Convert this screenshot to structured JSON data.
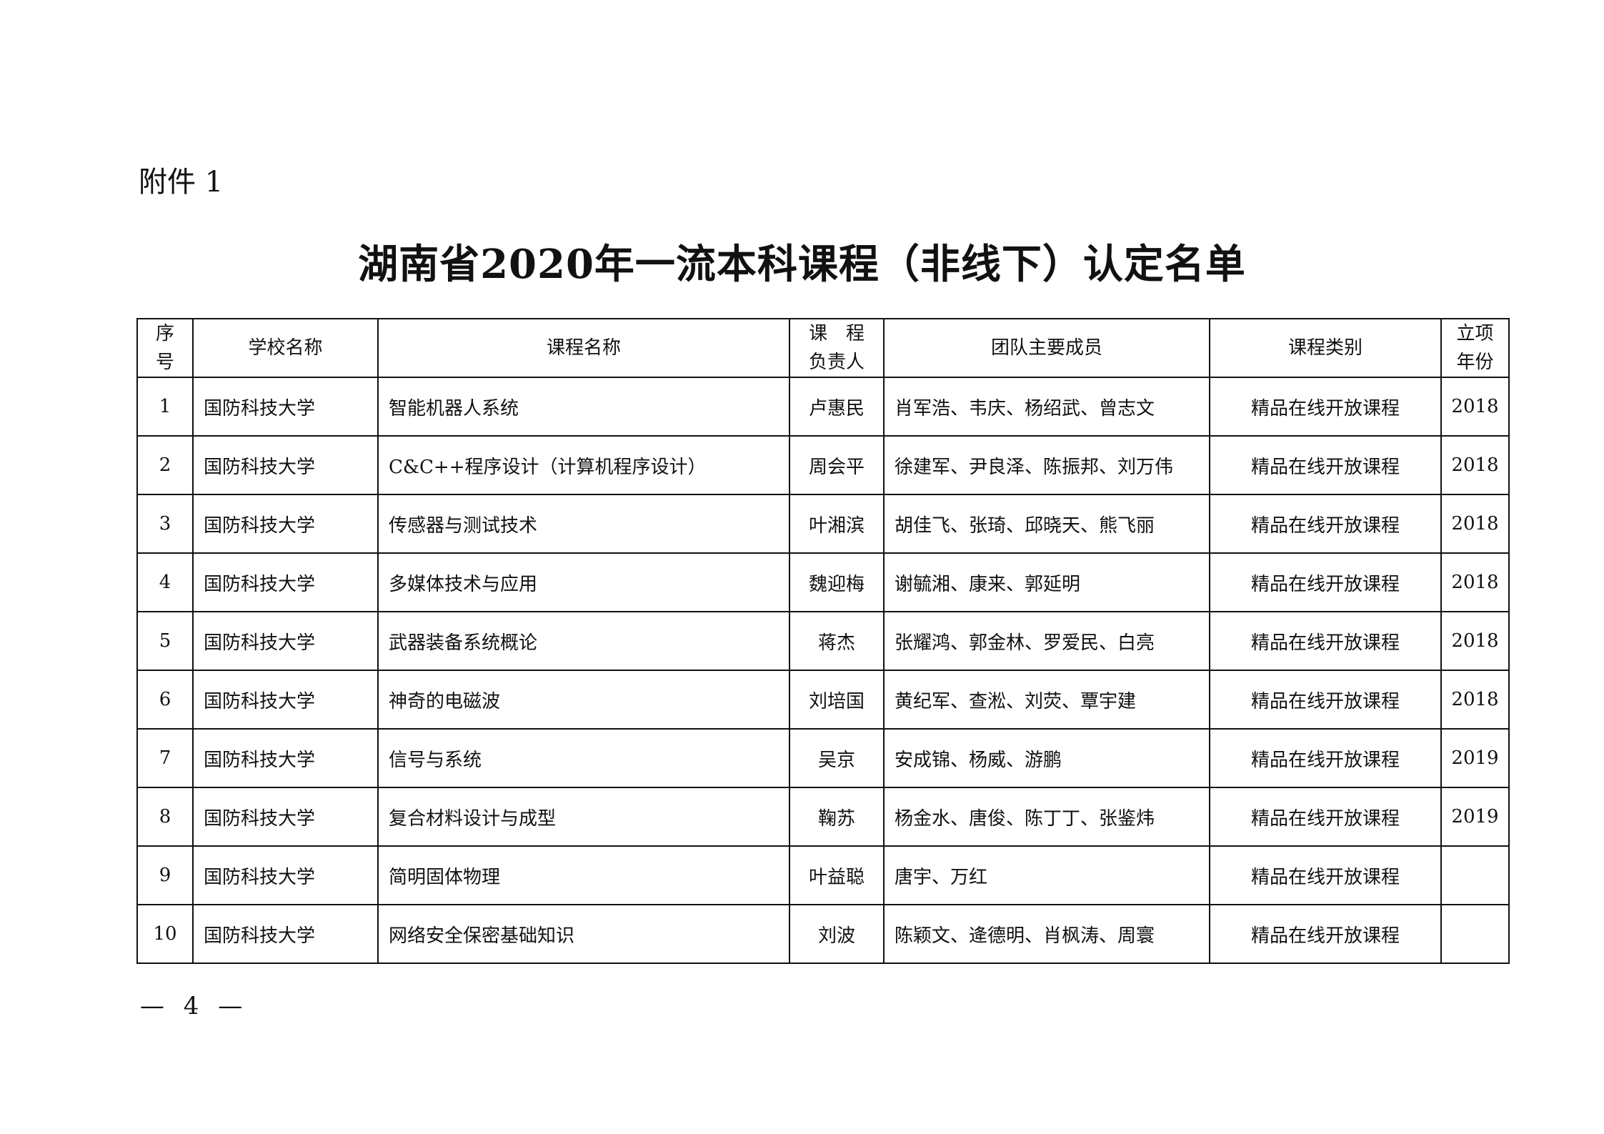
{
  "attachment_label": "附件 1",
  "title": "湖南省2020年一流本科课程（非线下）认定名单",
  "table": {
    "headers": {
      "index_line1": "序",
      "index_line2": "号",
      "school": "学校名称",
      "course": "课程名称",
      "lead_line1": "课　程",
      "lead_line2": "负责人",
      "team": "团队主要成员",
      "category": "课程类别",
      "year_line1": "立项",
      "year_line2": "年份"
    },
    "rows": [
      {
        "no": "1",
        "school": "国防科技大学",
        "course": "智能机器人系统",
        "lead": "卢惠民",
        "team": "肖军浩、韦庆、杨绍武、曾志文",
        "category": "精品在线开放课程",
        "year": "2018"
      },
      {
        "no": "2",
        "school": "国防科技大学",
        "course": "C&C++程序设计（计算机程序设计）",
        "lead": "周会平",
        "team": "徐建军、尹良泽、陈振邦、刘万伟",
        "category": "精品在线开放课程",
        "year": "2018"
      },
      {
        "no": "3",
        "school": "国防科技大学",
        "course": "传感器与测试技术",
        "lead": "叶湘滨",
        "team": "胡佳飞、张琦、邱晓天、熊飞丽",
        "category": "精品在线开放课程",
        "year": "2018"
      },
      {
        "no": "4",
        "school": "国防科技大学",
        "course": "多媒体技术与应用",
        "lead": "魏迎梅",
        "team": "谢毓湘、康来、郭延明",
        "category": "精品在线开放课程",
        "year": "2018"
      },
      {
        "no": "5",
        "school": "国防科技大学",
        "course": "武器装备系统概论",
        "lead": "蒋杰",
        "team": "张耀鸿、郭金林、罗爱民、白亮",
        "category": "精品在线开放课程",
        "year": "2018"
      },
      {
        "no": "6",
        "school": "国防科技大学",
        "course": "神奇的电磁波",
        "lead": "刘培国",
        "team": "黄纪军、查淞、刘荧、覃宇建",
        "category": "精品在线开放课程",
        "year": "2018"
      },
      {
        "no": "7",
        "school": "国防科技大学",
        "course": "信号与系统",
        "lead": "吴京",
        "team": "安成锦、杨威、游鹏",
        "category": "精品在线开放课程",
        "year": "2019"
      },
      {
        "no": "8",
        "school": "国防科技大学",
        "course": "复合材料设计与成型",
        "lead": "鞠苏",
        "team": "杨金水、唐俊、陈丁丁、张鉴炜",
        "category": "精品在线开放课程",
        "year": "2019"
      },
      {
        "no": "9",
        "school": "国防科技大学",
        "course": "简明固体物理",
        "lead": "叶益聪",
        "team": "唐宇、万红",
        "category": "精品在线开放课程",
        "year": ""
      },
      {
        "no": "10",
        "school": "国防科技大学",
        "course": "网络安全保密基础知识",
        "lead": "刘波",
        "team": "陈颖文、逄德明、肖枫涛、周寰",
        "category": "精品在线开放课程",
        "year": ""
      }
    ]
  },
  "page_number": "— 4 —"
}
